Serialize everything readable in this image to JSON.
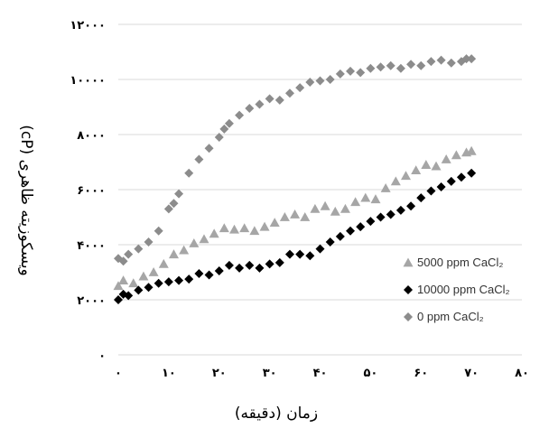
{
  "chart_data": {
    "type": "scatter",
    "xlabel": "زمان (دقیقه)",
    "ylabel": "ویسکوزیته ظاهری (cP)",
    "xlim": [
      0,
      80
    ],
    "ylim": [
      0,
      12000
    ],
    "x_ticks": [
      0,
      10,
      20,
      30,
      40,
      50,
      60,
      70,
      80
    ],
    "y_ticks": [
      0,
      2000,
      4000,
      6000,
      8000,
      10000,
      12000
    ],
    "x_tick_labels": [
      "۰",
      "۱۰",
      "۲۰",
      "۳۰",
      "۴۰",
      "۵۰",
      "۶۰",
      "۷۰",
      "۸۰"
    ],
    "y_tick_labels": [
      "۰",
      "۲۰۰۰",
      "۴۰۰۰",
      "۶۰۰۰",
      "۸۰۰۰",
      "۱۰۰۰۰",
      "۱۲۰۰۰"
    ],
    "grid": "horizontal",
    "legend_position": "bottom-right",
    "series": [
      {
        "name": "5000 ppm CaCl₂",
        "marker": "triangle",
        "color": "#a6a6a6",
        "x": [
          0,
          1,
          3,
          5,
          7,
          9,
          11,
          13,
          15,
          17,
          19,
          21,
          23,
          25,
          27,
          29,
          31,
          33,
          35,
          37,
          39,
          41,
          43,
          45,
          47,
          49,
          51,
          53,
          55,
          57,
          59,
          61,
          63,
          65,
          67,
          69,
          70
        ],
        "y": [
          2500,
          2700,
          2600,
          2850,
          3000,
          3300,
          3650,
          3800,
          4050,
          4200,
          4400,
          4600,
          4550,
          4600,
          4500,
          4650,
          4800,
          5000,
          5100,
          5000,
          5300,
          5400,
          5200,
          5300,
          5550,
          5700,
          5650,
          6050,
          6300,
          6500,
          6700,
          6900,
          6850,
          7100,
          7250,
          7350,
          7400
        ]
      },
      {
        "name": "10000 ppm CaCl₂",
        "marker": "diamond",
        "color": "#000000",
        "x": [
          0,
          1,
          2,
          4,
          6,
          8,
          10,
          12,
          14,
          16,
          18,
          20,
          22,
          24,
          26,
          28,
          30,
          32,
          34,
          36,
          38,
          40,
          42,
          44,
          46,
          48,
          50,
          52,
          54,
          56,
          58,
          60,
          62,
          64,
          66,
          68,
          70
        ],
        "y": [
          2000,
          2200,
          2150,
          2350,
          2450,
          2600,
          2650,
          2700,
          2750,
          2950,
          2900,
          3050,
          3250,
          3150,
          3250,
          3150,
          3300,
          3350,
          3650,
          3650,
          3600,
          3850,
          4100,
          4300,
          4500,
          4650,
          4850,
          5000,
          5100,
          5250,
          5400,
          5700,
          5950,
          6100,
          6300,
          6450,
          6600
        ]
      },
      {
        "name": "0 ppm CaCl₂",
        "marker": "diamond",
        "color": "#8c8c8c",
        "x": [
          0,
          1,
          2,
          4,
          6,
          8,
          10,
          11,
          12,
          14,
          16,
          18,
          20,
          21,
          22,
          24,
          26,
          28,
          30,
          32,
          34,
          36,
          38,
          40,
          42,
          44,
          46,
          48,
          50,
          52,
          54,
          56,
          58,
          60,
          62,
          64,
          66,
          68,
          69,
          70
        ],
        "y": [
          3500,
          3400,
          3650,
          3850,
          4100,
          4500,
          5300,
          5500,
          5850,
          6600,
          7100,
          7500,
          7900,
          8200,
          8400,
          8700,
          8950,
          9100,
          9300,
          9250,
          9500,
          9700,
          9900,
          9950,
          10000,
          10200,
          10300,
          10250,
          10400,
          10450,
          10500,
          10400,
          10550,
          10500,
          10650,
          10700,
          10600,
          10650,
          10750,
          10750
        ]
      }
    ]
  }
}
